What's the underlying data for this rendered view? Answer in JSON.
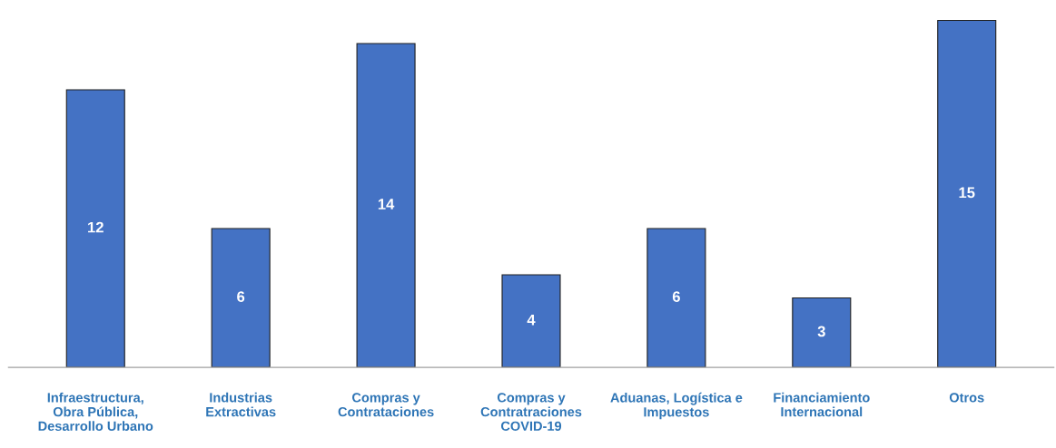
{
  "chart_data": {
    "type": "bar",
    "categories": [
      "Infraestructura, Obra Pública, Desarrollo Urbano",
      "Industrias Extractivas",
      "Compras y Contrataciones",
      "Compras y Contratraciones COVID-19",
      "Aduanas, Logística e Impuestos",
      "Financiamiento Internacional",
      "Otros"
    ],
    "values": [
      12,
      6,
      14,
      4,
      6,
      3,
      15
    ],
    "color": "#4472c4",
    "data_labels": true,
    "grid": false,
    "legend": false
  }
}
